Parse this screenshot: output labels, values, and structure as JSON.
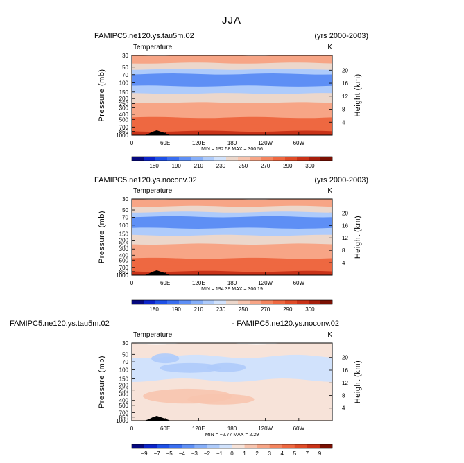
{
  "figure": {
    "title": "JJA"
  },
  "chart_data": [
    {
      "type": "heatmap",
      "title": "FAMIPC5.ne120.ys.tau5m.02",
      "title_right": "(yrs 2000-2003)",
      "variable": "Temperature",
      "units": "K",
      "xlabel": "",
      "ylabel": "Pressure (mb)",
      "y2label": "Height (km)",
      "x_ticks": [
        "0",
        "60E",
        "120E",
        "180",
        "120W",
        "60W"
      ],
      "y_ticks": [
        "30",
        "50",
        "70",
        "100",
        "150",
        "200",
        "250",
        "300",
        "400",
        "500",
        "700",
        "850",
        "1000"
      ],
      "y2_ticks": [
        "20",
        "16",
        "12",
        "8",
        "4"
      ],
      "stats": "MIN = 192.58   MAX = 300.56",
      "colorbar": {
        "labels": [
          "180",
          "190",
          "210",
          "230",
          "250",
          "270",
          "290",
          "300"
        ],
        "colors": [
          "#06087e",
          "#0c24c9",
          "#1e50e6",
          "#3a6ef0",
          "#5e8ff5",
          "#86aff9",
          "#aecbfb",
          "#d1e2fc",
          "#ecd7cb",
          "#f7c4ae",
          "#f7a586",
          "#f4855f",
          "#ee6841",
          "#df4c28",
          "#c93218",
          "#a61e0b",
          "#7a1003"
        ]
      },
      "bands": [
        {
          "p": 30,
          "level": 250
        },
        {
          "p": 42,
          "level": 230
        },
        {
          "p": 55,
          "level": 210
        },
        {
          "p": 68,
          "level": 200
        },
        {
          "p": 90,
          "level": 205
        },
        {
          "p": 115,
          "level": 215
        },
        {
          "p": 135,
          "level": 225
        },
        {
          "p": 160,
          "level": 240
        },
        {
          "p": 200,
          "level": 245
        },
        {
          "p": 240,
          "level": 250
        },
        {
          "p": 290,
          "level": 255
        },
        {
          "p": 340,
          "level": 260
        },
        {
          "p": 400,
          "level": 265
        },
        {
          "p": 460,
          "level": 270
        },
        {
          "p": 540,
          "level": 275
        },
        {
          "p": 630,
          "level": 280
        },
        {
          "p": 730,
          "level": 285
        },
        {
          "p": 840,
          "level": 290
        },
        {
          "p": 950,
          "level": 295
        }
      ]
    },
    {
      "type": "heatmap",
      "title": "FAMIPC5.ne120.ys.noconv.02",
      "title_right": "(yrs 2000-2003)",
      "variable": "Temperature",
      "units": "K",
      "xlabel": "",
      "ylabel": "Pressure (mb)",
      "y2label": "Height (km)",
      "x_ticks": [
        "0",
        "60E",
        "120E",
        "180",
        "120W",
        "60W"
      ],
      "y_ticks": [
        "30",
        "50",
        "70",
        "100",
        "150",
        "200",
        "250",
        "300",
        "400",
        "500",
        "700",
        "850",
        "1000"
      ],
      "y2_ticks": [
        "20",
        "16",
        "12",
        "8",
        "4"
      ],
      "stats": "MIN = 194.39   MAX = 300.19",
      "colorbar": {
        "labels": [
          "180",
          "190",
          "210",
          "230",
          "250",
          "270",
          "290",
          "300"
        ],
        "colors": [
          "#06087e",
          "#0c24c9",
          "#1e50e6",
          "#3a6ef0",
          "#5e8ff5",
          "#86aff9",
          "#aecbfb",
          "#d1e2fc",
          "#ecd7cb",
          "#f7c4ae",
          "#f7a586",
          "#f4855f",
          "#ee6841",
          "#df4c28",
          "#c93218",
          "#a61e0b",
          "#7a1003"
        ]
      },
      "bands": [
        {
          "p": 30,
          "level": 250
        },
        {
          "p": 42,
          "level": 230
        },
        {
          "p": 55,
          "level": 210
        },
        {
          "p": 68,
          "level": 200
        },
        {
          "p": 90,
          "level": 205
        },
        {
          "p": 115,
          "level": 215
        },
        {
          "p": 135,
          "level": 225
        },
        {
          "p": 160,
          "level": 240
        },
        {
          "p": 200,
          "level": 245
        },
        {
          "p": 240,
          "level": 250
        },
        {
          "p": 290,
          "level": 255
        },
        {
          "p": 340,
          "level": 260
        },
        {
          "p": 400,
          "level": 265
        },
        {
          "p": 460,
          "level": 270
        },
        {
          "p": 540,
          "level": 275
        },
        {
          "p": 630,
          "level": 280
        },
        {
          "p": 730,
          "level": 285
        },
        {
          "p": 840,
          "level": 290
        },
        {
          "p": 950,
          "level": 295
        }
      ]
    },
    {
      "type": "heatmap",
      "title": "FAMIPC5.ne120.ys.tau5m.02",
      "title_right": "- FAMIPC5.ne120.ys.noconv.02",
      "variable": "Temperature",
      "units": "K",
      "xlabel": "",
      "ylabel": "Pressure (mb)",
      "y2label": "Height (km)",
      "x_ticks": [
        "0",
        "60E",
        "120E",
        "180",
        "120W",
        "60W"
      ],
      "y_ticks": [
        "30",
        "50",
        "70",
        "100",
        "150",
        "200",
        "250",
        "300",
        "400",
        "500",
        "700",
        "850",
        "1000"
      ],
      "y2_ticks": [
        "20",
        "16",
        "12",
        "8",
        "4"
      ],
      "stats": "MIN = −2.77   MAX = 2.29",
      "colorbar": {
        "labels": [
          "−9",
          "−7",
          "−5",
          "−4",
          "−3",
          "−2",
          "−1",
          "0",
          "1",
          "2",
          "3",
          "4",
          "5",
          "7",
          "9"
        ],
        "colors": [
          "#06087e",
          "#0c24c9",
          "#1e50e6",
          "#3a6ef0",
          "#5e8ff5",
          "#86aff9",
          "#aecbfb",
          "#d1e2fc",
          "#f7e3d9",
          "#f7c4ae",
          "#f7a586",
          "#f4855f",
          "#ee6841",
          "#df4c28",
          "#c93218",
          "#7a1003"
        ]
      },
      "bands": [
        {
          "p": 30,
          "level": 0.2
        },
        {
          "p": 55,
          "level": -0.5
        },
        {
          "p": 160,
          "level": 0.2
        },
        {
          "p": 260,
          "level": 0.6
        },
        {
          "p": 650,
          "level": 0.2
        },
        {
          "p": 900,
          "level": 0.3
        }
      ],
      "blobs": [
        {
          "lon": 105,
          "p": 92,
          "lon_w": 55,
          "p_h": 12,
          "level": -1.5
        },
        {
          "lon": 170,
          "p": 90,
          "lon_w": 35,
          "p_h": 10,
          "level": -1.5
        },
        {
          "lon": 100,
          "p": 330,
          "lon_w": 80,
          "p_h": 90,
          "level": 1.5
        },
        {
          "lon": 160,
          "p": 380,
          "lon_w": 60,
          "p_h": 60,
          "level": 1.5
        },
        {
          "lon": 60,
          "p": 60,
          "lon_w": 25,
          "p_h": 8,
          "level": -1.5
        }
      ]
    }
  ]
}
